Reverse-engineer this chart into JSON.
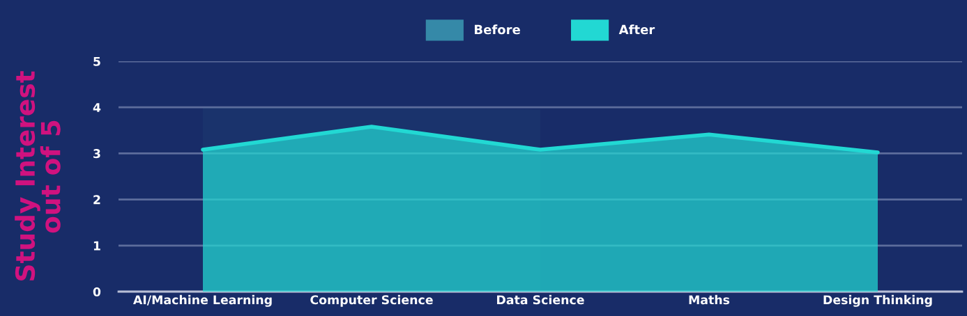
{
  "chart_data": {
    "type": "area",
    "ylabel": "Study Interest\nout of 5",
    "categories": [
      "AI/Machine Learning",
      "Computer Science",
      "Data Science",
      "Maths",
      "Design Thinking"
    ],
    "series": [
      {
        "name": "Before",
        "color": "#3589a8",
        "values": [
          4.0,
          4.0,
          3.95,
          null,
          null
        ]
      },
      {
        "name": "After",
        "color": "#22d8d3",
        "values": [
          3.08,
          3.58,
          3.08,
          3.41,
          3.02
        ]
      }
    ],
    "ylim": [
      0,
      5
    ],
    "yticks": [
      0,
      1,
      2,
      3,
      4,
      5
    ],
    "grid": "y",
    "legend": "top"
  }
}
